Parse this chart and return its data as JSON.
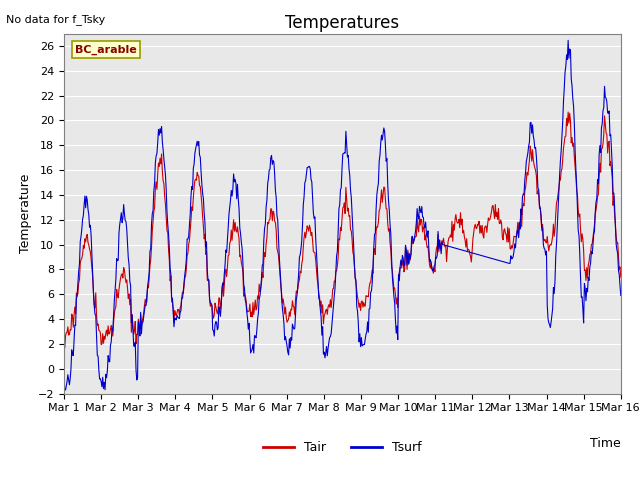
{
  "title": "Temperatures",
  "xlabel": "Time",
  "ylabel": "Temperature",
  "ylim": [
    -2,
    27
  ],
  "yticks": [
    -2,
    0,
    2,
    4,
    6,
    8,
    10,
    12,
    14,
    16,
    18,
    20,
    22,
    24,
    26
  ],
  "xtick_labels": [
    "Mar 1",
    "Mar 2",
    "Mar 3",
    "Mar 4",
    "Mar 5",
    "Mar 6",
    "Mar 7",
    "Mar 8",
    "Mar 9",
    "Mar 10",
    "Mar 11",
    "Mar 12",
    "Mar 13",
    "Mar 14",
    "Mar 15",
    "Mar 16"
  ],
  "tair_color": "#cc0000",
  "tsurf_color": "#0000cc",
  "bg_color": "#e8e8e8",
  "legend_label_tair": "Tair",
  "legend_label_tsurf": "Tsurf",
  "site_label": "BC_arable",
  "no_data_text": "No data for f_Tsky",
  "title_fontsize": 12,
  "axis_label_fontsize": 9,
  "tick_fontsize": 8,
  "line_width": 0.8
}
